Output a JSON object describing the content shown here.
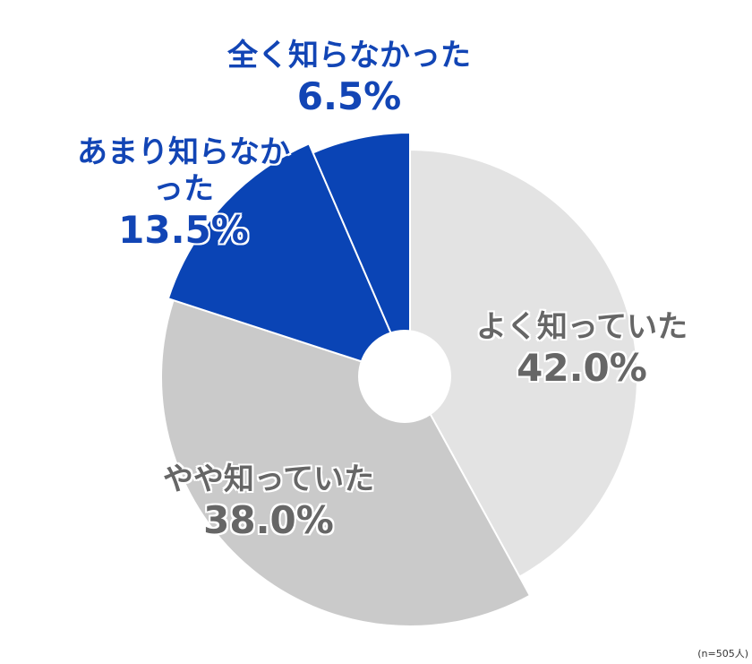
{
  "chart_data": {
    "type": "pie",
    "categories": [
      "よく知っていた",
      "やや知っていた",
      "あまり知らなかった",
      "全く知らなかった"
    ],
    "values": [
      42.0,
      38.0,
      13.5,
      6.5
    ],
    "value_labels": [
      "42.0%",
      "38.0%",
      "13.5%",
      "6.5%"
    ],
    "colors": [
      "#e3e3e3",
      "#cacaca",
      "#0a44b5",
      "#0a44b5"
    ],
    "label_colors": [
      "#666666",
      "#666666",
      "#1245b5",
      "#1245b5"
    ],
    "note": "(n=505人)"
  }
}
